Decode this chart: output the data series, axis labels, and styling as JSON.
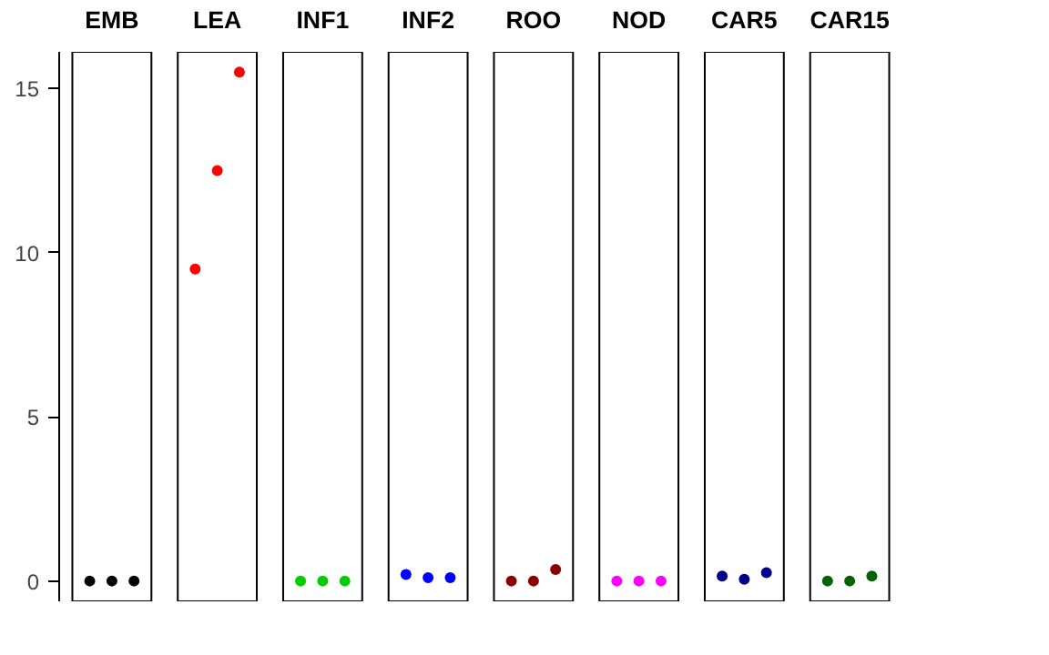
{
  "chart_data": {
    "type": "scatter",
    "categories": [
      "EMB",
      "LEA",
      "INF1",
      "INF2",
      "ROO",
      "NOD",
      "CAR5",
      "CAR15"
    ],
    "series": [
      {
        "colors": [
          "#000000",
          "#ff0000",
          "#00cd00",
          "#0000ff",
          "#8b0000",
          "#ff00ff",
          "#00008b",
          "#006400"
        ],
        "values": [
          0,
          9.5,
          0,
          0.2,
          0,
          0,
          0.15,
          0
        ]
      },
      {
        "colors": [
          "#000000",
          "#ff0000",
          "#00cd00",
          "#0000ff",
          "#8b0000",
          "#ff00ff",
          "#00008b",
          "#006400"
        ],
        "values": [
          0,
          12.5,
          0,
          0.1,
          0,
          0,
          0.05,
          0
        ]
      },
      {
        "colors": [
          "#000000",
          "#ff0000",
          "#00cd00",
          "#0000ff",
          "#8b0000",
          "#ff00ff",
          "#00008b",
          "#006400"
        ],
        "values": [
          0,
          15.5,
          0,
          0.1,
          0.35,
          0,
          0.25,
          0.15
        ]
      }
    ],
    "marker": "circle",
    "ylim": [
      -0.62,
      16.12
    ],
    "yticks": [
      0,
      5,
      10,
      15
    ]
  }
}
